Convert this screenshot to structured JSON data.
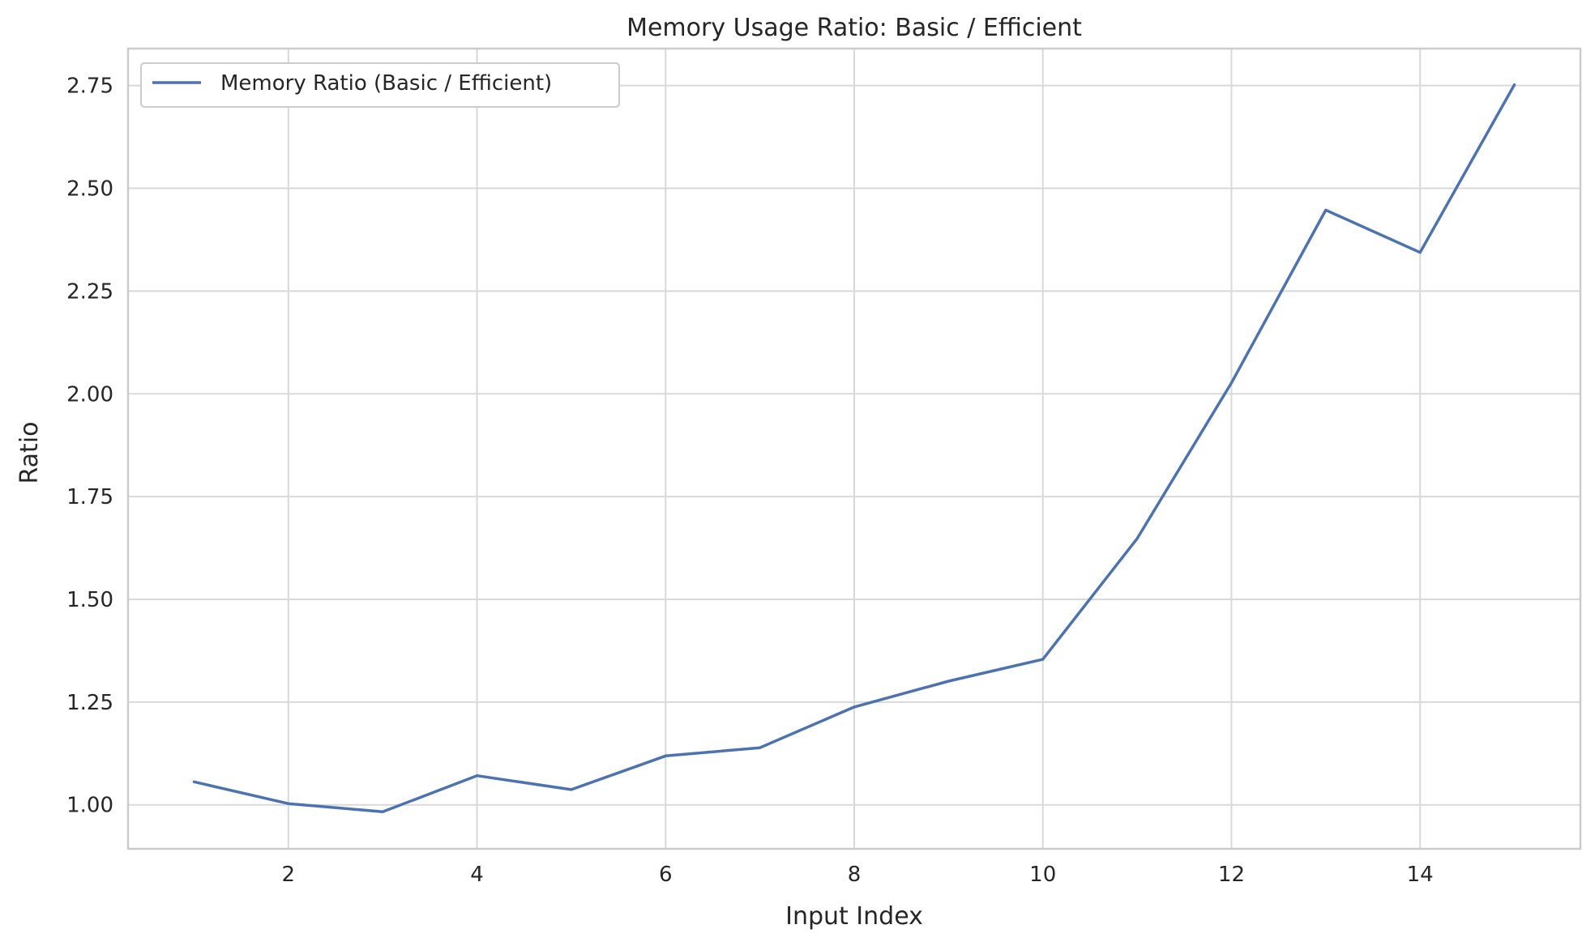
{
  "chart_data": {
    "type": "line",
    "title": "Memory Usage Ratio: Basic / Efficient",
    "xlabel": "Input Index",
    "ylabel": "Ratio",
    "x": [
      1,
      2,
      3,
      4,
      5,
      6,
      7,
      8,
      9,
      10,
      11,
      12,
      13,
      14,
      15
    ],
    "series": [
      {
        "name": "Memory Ratio (Basic / Efficient)",
        "color": "#4c72b0",
        "values": [
          1.056,
          1.003,
          0.983,
          1.071,
          1.037,
          1.119,
          1.139,
          1.238,
          1.301,
          1.354,
          1.648,
          2.027,
          2.447,
          2.344,
          2.752
        ]
      }
    ],
    "xlim": [
      0.3,
      15.7
    ],
    "ylim": [
      0.893,
      2.84
    ],
    "xticks": [
      2,
      4,
      6,
      8,
      10,
      12,
      14
    ],
    "xtick_labels": [
      "2",
      "4",
      "6",
      "8",
      "10",
      "12",
      "14"
    ],
    "yticks": [
      1.0,
      1.25,
      1.5,
      1.75,
      2.0,
      2.25,
      2.5,
      2.75
    ],
    "ytick_labels": [
      "1.00",
      "1.25",
      "1.50",
      "1.75",
      "2.00",
      "2.25",
      "2.50",
      "2.75"
    ],
    "grid": true,
    "legend_position": "top-left",
    "colors": {
      "grid": "#d9d9d9",
      "frame": "#cccccc",
      "text": "#262626",
      "background": "#ffffff"
    }
  }
}
